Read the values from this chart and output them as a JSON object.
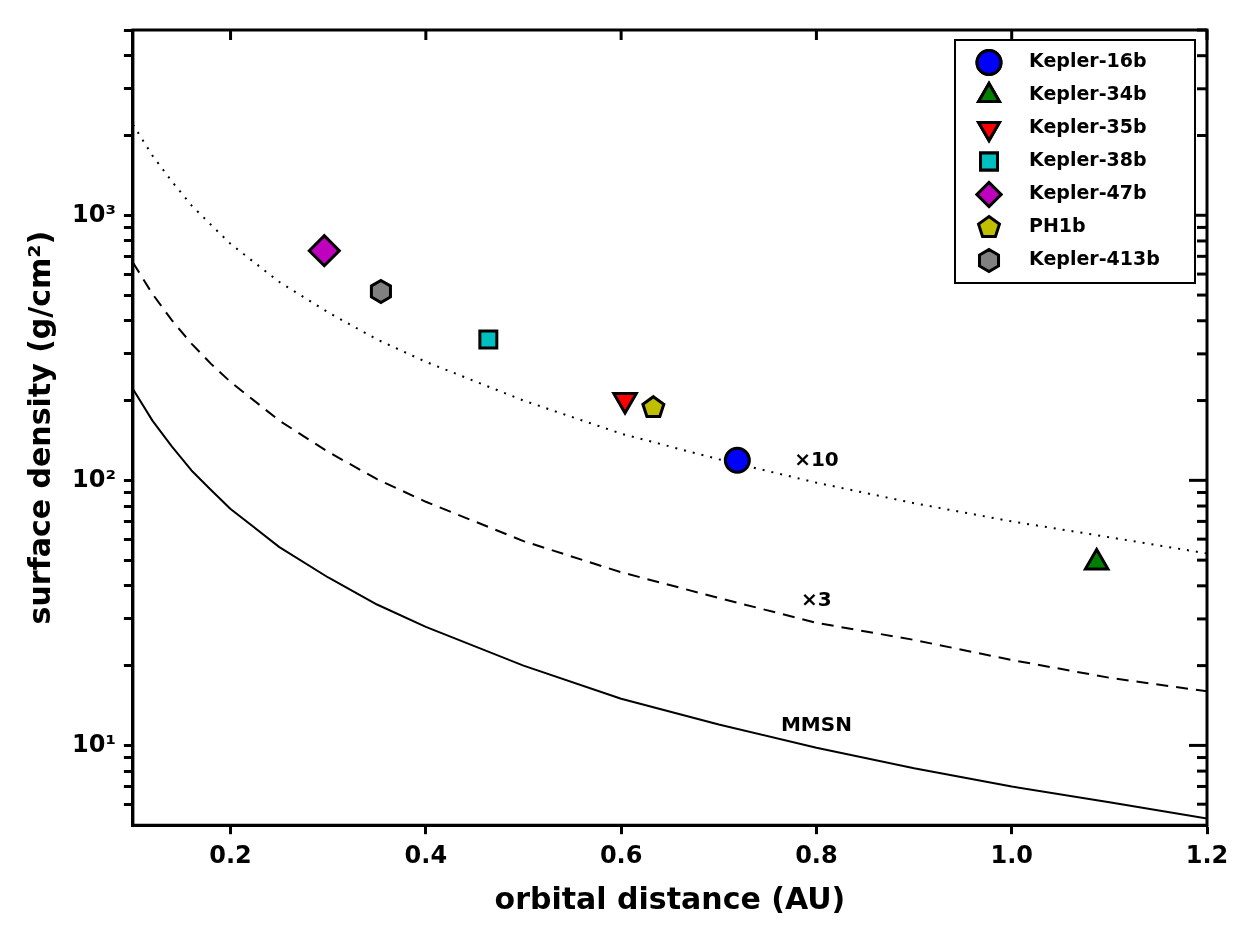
{
  "chart_data": {
    "type": "scatter",
    "xlabel": "orbital distance (AU)",
    "ylabel": "surface density (g/cm²)",
    "log": "y",
    "xlim": [
      0.1,
      1.2
    ],
    "ylim": [
      5,
      5000
    ],
    "xticks": [
      0.2,
      0.4,
      0.6,
      0.8,
      {
        "value": 1.0,
        "label": "1.0"
      },
      1.2
    ],
    "yticks": [
      {
        "value": 6,
        "label": null
      },
      {
        "value": 7,
        "label": null
      },
      {
        "value": 8,
        "label": null
      },
      {
        "value": 9,
        "label": null
      },
      {
        "value": 10,
        "label": "10¹"
      },
      {
        "value": 20,
        "label": null
      },
      {
        "value": 30,
        "label": null
      },
      {
        "value": 40,
        "label": null
      },
      {
        "value": 50,
        "label": null
      },
      {
        "value": 60,
        "label": null
      },
      {
        "value": 70,
        "label": null
      },
      {
        "value": 80,
        "label": null
      },
      {
        "value": 90,
        "label": null
      },
      {
        "value": 100,
        "label": "10²"
      },
      {
        "value": 200,
        "label": null
      },
      {
        "value": 300,
        "label": null
      },
      {
        "value": 400,
        "label": null
      },
      {
        "value": 500,
        "label": null
      },
      {
        "value": 600,
        "label": null
      },
      {
        "value": 700,
        "label": null
      },
      {
        "value": 800,
        "label": null
      },
      {
        "value": 900,
        "label": null
      },
      {
        "value": 1000,
        "label": "10³"
      },
      {
        "value": 2000,
        "label": null
      },
      {
        "value": 3000,
        "label": null
      },
      {
        "value": 4000,
        "label": null
      },
      {
        "value": 5000,
        "label": null
      }
    ],
    "grid": false,
    "legend": "top right",
    "series": [
      {
        "type": "line",
        "color": "#000000",
        "line_style": "solid",
        "marker": "none",
        "x": [
          0.1,
          0.12,
          0.14,
          0.16,
          0.18,
          0.2,
          0.25,
          0.3,
          0.35,
          0.4,
          0.5,
          0.6,
          0.7,
          0.8,
          0.9,
          1.0,
          1.1,
          1.2
        ],
        "values": [
          221,
          168,
          134,
          109,
          92,
          78,
          56,
          43,
          34,
          28,
          20,
          15,
          12,
          9.8,
          8.2,
          7,
          6.1,
          5.3
        ]
      },
      {
        "type": "line",
        "color": "#000000",
        "line_style": "dashed",
        "marker": "none",
        "x": [
          0.1,
          0.12,
          0.14,
          0.16,
          0.18,
          0.2,
          0.25,
          0.3,
          0.35,
          0.4,
          0.5,
          0.6,
          0.7,
          0.8,
          0.9,
          1.0,
          1.1,
          1.2
        ],
        "values": [
          664,
          505,
          401,
          328,
          275,
          235,
          168,
          128,
          101,
          83,
          59,
          45,
          36,
          29,
          25,
          21,
          18,
          16
        ]
      },
      {
        "type": "line",
        "color": "#000000",
        "line_style": "dotted",
        "marker": "none",
        "x": [
          0.1,
          0.12,
          0.14,
          0.16,
          0.18,
          0.2,
          0.25,
          0.3,
          0.35,
          0.4,
          0.5,
          0.6,
          0.7,
          0.8,
          0.9,
          1.0,
          1.1,
          1.2
        ],
        "values": [
          2200,
          1680,
          1340,
          1090,
          920,
          780,
          560,
          430,
          340,
          280,
          200,
          150,
          120,
          98,
          82,
          70,
          61,
          53
        ]
      },
      {
        "name": "Kepler-16b",
        "color": "#0000ff",
        "marker": "circle",
        "x": [
          0.719
        ],
        "values": [
          119
        ]
      },
      {
        "name": "Kepler-34b",
        "color": "#008000",
        "marker": "triangle",
        "x": [
          1.087
        ],
        "values": [
          49
        ]
      },
      {
        "name": "Kepler-35b",
        "color": "#ff0000",
        "x": [
          0.604
        ],
        "values": [
          201
        ]
      },
      {
        "name": "Kepler-38b",
        "color": "#00bfbf",
        "marker": "square",
        "x": [
          0.464
        ],
        "values": [
          340
        ]
      },
      {
        "name": "Kepler-47b",
        "color": "#bf00bf",
        "marker": "diamond",
        "x": [
          0.296
        ],
        "values": [
          735
        ]
      },
      {
        "name": "PH1b",
        "color": "#bfbf00",
        "x": [
          0.633
        ],
        "values": [
          188
        ]
      },
      {
        "name": "Kepler-413b",
        "color": "#808080",
        "x": [
          0.354
        ],
        "values": [
          516
        ]
      }
    ],
    "annotations": [
      "MMSN",
      "×3",
      "×10"
    ]
  }
}
